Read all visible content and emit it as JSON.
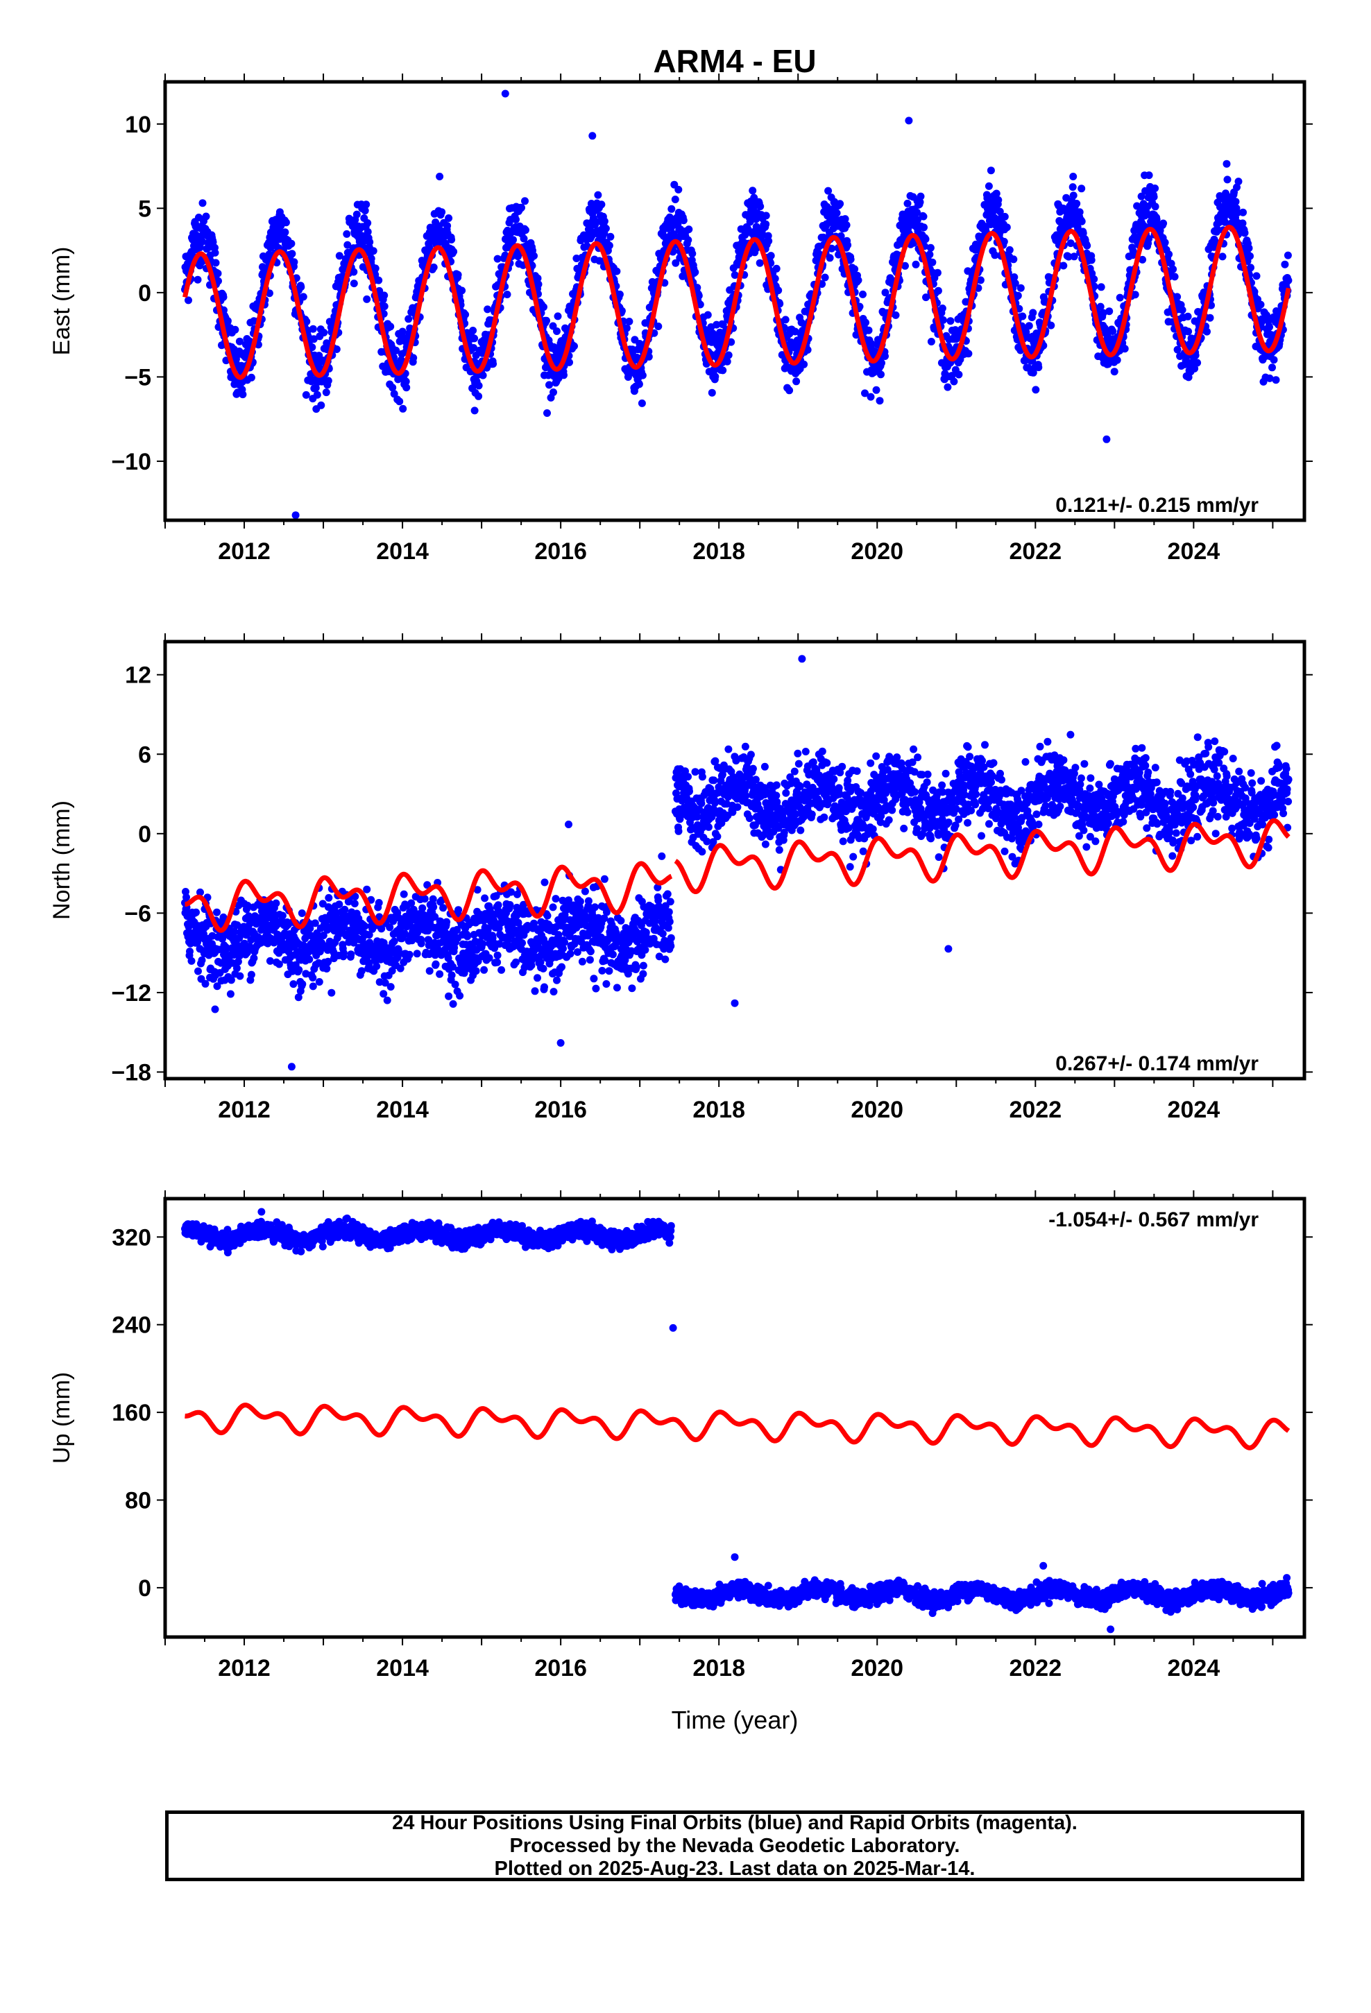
{
  "chart_data": [
    {
      "type": "scatter",
      "title": "ARM4 - EU",
      "xlabel": "",
      "ylabel": "East (mm)",
      "xlim": [
        2011.0,
        2025.4
      ],
      "ylim": [
        -13.5,
        12.5
      ],
      "xticks": [
        2012,
        2014,
        2016,
        2018,
        2020,
        2022,
        2024
      ],
      "yticks": [
        -10,
        -5,
        0,
        5,
        10
      ],
      "rate_label": "0.121+/- 0.215 mm/yr",
      "rate_label_position": "bottom-right",
      "data_start": 2011.25,
      "data_end": 2025.2,
      "series": [
        {
          "name": "24 Hour Positions (Final Orbits)",
          "color": "#0000ff",
          "marker": "circle",
          "pattern": {
            "amplitude": 4.2,
            "period_years": 1.0,
            "phase": 0.2,
            "offset": 0.0,
            "slope": 0.121,
            "scatter": 1.6
          },
          "outliers": [
            [
              2012.65,
              -13.2
            ],
            [
              2015.3,
              11.8
            ],
            [
              2016.4,
              9.3
            ],
            [
              2022.9,
              -8.7
            ],
            [
              2020.4,
              10.2
            ]
          ]
        },
        {
          "name": "model fit",
          "color": "#ff0000",
          "type": "line",
          "pattern": {
            "amplitude": 3.7,
            "period_years": 1.0,
            "phase": 0.2,
            "offset": -0.6,
            "slope": 0.121
          }
        }
      ]
    },
    {
      "type": "scatter",
      "title": "",
      "xlabel": "",
      "ylabel": "North (mm)",
      "xlim": [
        2011.0,
        2025.4
      ],
      "ylim": [
        -18.5,
        14.5
      ],
      "xticks": [
        2012,
        2014,
        2016,
        2018,
        2020,
        2022,
        2024
      ],
      "yticks": [
        -18,
        -12,
        -6,
        0,
        6,
        12
      ],
      "rate_label": "0.267+/- 0.174 mm/yr",
      "rate_label_position": "bottom-right",
      "data_start": 2011.25,
      "data_end": 2025.2,
      "offset_epoch": 2017.45,
      "series": [
        {
          "name": "24 Hour Positions (Final Orbits)",
          "color": "#0000ff",
          "marker": "circle",
          "segments": [
            {
              "start": 2011.25,
              "end": 2017.4,
              "mean": -7.8,
              "amplitude": 1.0,
              "scatter": 1.9
            },
            {
              "start": 2017.45,
              "end": 2025.2,
              "mean": 2.6,
              "amplitude": 1.2,
              "scatter": 1.8
            }
          ],
          "outliers": [
            [
              2019.05,
              13.2
            ],
            [
              2012.6,
              -17.6
            ],
            [
              2016.0,
              -15.8
            ],
            [
              2018.2,
              -12.8
            ],
            [
              2020.9,
              -8.7
            ],
            [
              2016.1,
              0.7
            ]
          ]
        },
        {
          "name": "model fit",
          "color": "#ff0000",
          "type": "line",
          "segments": [
            {
              "start": 2011.25,
              "end": 2017.4,
              "mean": -3.6,
              "slope": 0.267,
              "amplitude": 1.7
            },
            {
              "start": 2017.45,
              "end": 2025.2,
              "mean": -2.4,
              "slope": 0.267,
              "amplitude": 1.6
            }
          ]
        }
      ]
    },
    {
      "type": "scatter",
      "title": "",
      "xlabel": "Time (year)",
      "ylabel": "Up (mm)",
      "xlim": [
        2011.0,
        2025.4
      ],
      "ylim": [
        -45,
        355
      ],
      "xticks": [
        2012,
        2014,
        2016,
        2018,
        2020,
        2022,
        2024
      ],
      "yticks": [
        0,
        80,
        160,
        240,
        320
      ],
      "rate_label": "-1.054+/- 0.567 mm/yr",
      "rate_label_position": "top-right",
      "data_start": 2011.25,
      "data_end": 2025.2,
      "offset_epoch": 2017.45,
      "series": [
        {
          "name": "24 Hour Positions (Final Orbits)",
          "color": "#0000ff",
          "marker": "circle",
          "segments": [
            {
              "start": 2011.25,
              "end": 2017.4,
              "mean": 322,
              "amplitude": 5,
              "scatter": 5
            },
            {
              "start": 2017.45,
              "end": 2025.2,
              "mean": -6,
              "amplitude": 5,
              "scatter": 5
            }
          ],
          "outliers": [
            [
              2017.42,
              237
            ],
            [
              2022.95,
              -38
            ],
            [
              2018.2,
              28
            ],
            [
              2022.1,
              20
            ]
          ]
        },
        {
          "name": "model fit",
          "color": "#ff0000",
          "type": "line",
          "segments": [
            {
              "start": 2011.25,
              "end": 2025.2,
              "mean": 149,
              "slope": -1.054,
              "amplitude": 12
            }
          ]
        }
      ]
    }
  ],
  "caption": {
    "line1": "24 Hour Positions Using Final Orbits (blue) and Rapid Orbits (magenta).",
    "line2": "Processed by the Nevada Geodetic Laboratory.",
    "line3": "Plotted on 2025-Aug-23. Last data on 2025-Mar-14."
  },
  "colors": {
    "points": "#0000ff",
    "fit": "#ff0000",
    "frame": "#000000"
  }
}
